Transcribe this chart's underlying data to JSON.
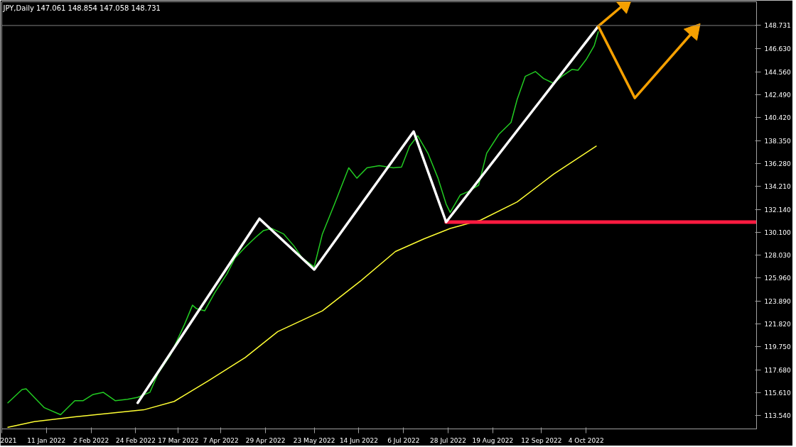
{
  "chart_data": {
    "type": "line",
    "title": "JPY,Daily  147.061 148.854 147.058 148.731",
    "xlim": [
      "2021-12-20",
      "2022-12-27"
    ],
    "ylim": [
      112.35,
      150.87
    ],
    "xticks": [
      {
        "value": "2021-12-20",
        "label": "2021"
      },
      {
        "value": "2022-01-11",
        "label": "11 Jan 2022"
      },
      {
        "value": "2022-02-02",
        "label": "2 Feb 2022"
      },
      {
        "value": "2022-02-24",
        "label": "24 Feb 2022"
      },
      {
        "value": "2022-03-17",
        "label": "17 Mar 2022"
      },
      {
        "value": "2022-04-07",
        "label": "7 Apr 2022"
      },
      {
        "value": "2022-04-29",
        "label": "29 Apr 2022"
      },
      {
        "value": "2022-05-23",
        "label": "23 May 2022"
      },
      {
        "value": "2022-06-14",
        "label": "14 Jun 2022"
      },
      {
        "value": "2022-07-06",
        "label": "6 Jul 2022"
      },
      {
        "value": "2022-07-28",
        "label": "28 Jul 2022"
      },
      {
        "value": "2022-08-19",
        "label": "19 Aug 2022"
      },
      {
        "value": "2022-09-12",
        "label": "12 Sep 2022"
      },
      {
        "value": "2022-10-04",
        "label": "4 Oct 2022"
      }
    ],
    "yticks": [
      {
        "value": 113.54,
        "label": "113.540"
      },
      {
        "value": 115.61,
        "label": "115.610"
      },
      {
        "value": 117.68,
        "label": "117.680"
      },
      {
        "value": 119.75,
        "label": "119.750"
      },
      {
        "value": 121.82,
        "label": "121.820"
      },
      {
        "value": 123.89,
        "label": "123.890"
      },
      {
        "value": 125.96,
        "label": "125.960"
      },
      {
        "value": 128.03,
        "label": "128.030"
      },
      {
        "value": 130.1,
        "label": "130.100"
      },
      {
        "value": 132.14,
        "label": "132.140"
      },
      {
        "value": 134.21,
        "label": "134.210"
      },
      {
        "value": 136.28,
        "label": "136.280"
      },
      {
        "value": 138.35,
        "label": "138.350"
      },
      {
        "value": 140.42,
        "label": "140.420"
      },
      {
        "value": 142.49,
        "label": "142.490"
      },
      {
        "value": 144.56,
        "label": "144.560"
      },
      {
        "value": 146.63,
        "label": "146.630"
      },
      148.731
    ],
    "grid": false,
    "ref_lines": [
      {
        "axis": "y",
        "value": 148.731,
        "color": "#808080"
      }
    ],
    "series": [
      {
        "color": "#ffff33",
        "x": [
          "2021-12-23",
          "2022-01-05",
          "2022-01-25",
          "2022-02-28",
          "2022-03-15",
          "2022-04-01",
          "2022-04-19",
          "2022-05-05",
          "2022-05-27",
          "2022-06-15",
          "2022-07-02",
          "2022-07-16",
          "2022-07-29",
          "2022-08-13",
          "2022-08-31",
          "2022-09-18",
          "2022-10-09"
        ],
        "values": [
          112.5,
          113.0,
          113.44,
          114.07,
          114.83,
          116.71,
          118.79,
          121.12,
          123.0,
          125.71,
          128.35,
          129.48,
          130.43,
          131.18,
          132.82,
          135.33,
          137.85
        ]
      },
      {
        "color": "#22cc22",
        "x": [
          "2021-12-23",
          "2021-12-30",
          "2022-01-01",
          "2022-01-05",
          "2022-01-10",
          "2022-01-18",
          "2022-01-25",
          "2022-01-29",
          "2022-02-03",
          "2022-02-08",
          "2022-02-14",
          "2022-02-20",
          "2022-02-25",
          "2022-03-03",
          "2022-03-07",
          "2022-03-13",
          "2022-03-20",
          "2022-03-24",
          "2022-03-26",
          "2022-03-30",
          "2022-04-04",
          "2022-04-10",
          "2022-04-14",
          "2022-04-19",
          "2022-04-24",
          "2022-04-28",
          "2022-05-02",
          "2022-05-08",
          "2022-05-13",
          "2022-05-17",
          "2022-05-23",
          "2022-05-27",
          "2022-06-02",
          "2022-06-09",
          "2022-06-13",
          "2022-06-18",
          "2022-06-24",
          "2022-07-01",
          "2022-07-05",
          "2022-07-09",
          "2022-07-13",
          "2022-07-18",
          "2022-07-23",
          "2022-07-27",
          "2022-07-29",
          "2022-08-03",
          "2022-08-07",
          "2022-08-12",
          "2022-08-16",
          "2022-08-22",
          "2022-08-28",
          "2022-08-31",
          "2022-09-04",
          "2022-09-09",
          "2022-09-13",
          "2022-09-18",
          "2022-09-22",
          "2022-09-27",
          "2022-09-30",
          "2022-10-04",
          "2022-10-08",
          "2022-10-10"
        ],
        "values": [
          114.7,
          115.9,
          115.96,
          115.2,
          114.26,
          113.63,
          114.89,
          114.89,
          115.46,
          115.65,
          114.89,
          115.02,
          115.2,
          115.65,
          117.34,
          118.98,
          121.75,
          123.51,
          123.19,
          123.0,
          124.64,
          126.34,
          127.78,
          128.73,
          129.61,
          130.24,
          130.43,
          129.92,
          128.85,
          127.78,
          126.97,
          129.92,
          132.63,
          135.9,
          134.96,
          135.9,
          136.09,
          135.9,
          135.96,
          137.85,
          138.79,
          137.22,
          134.96,
          132.63,
          131.87,
          133.45,
          133.76,
          134.33,
          137.22,
          138.92,
          139.99,
          142.06,
          144.14,
          144.58,
          143.95,
          143.51,
          144.14,
          144.77,
          144.7,
          145.65,
          146.91,
          148.17
        ]
      },
      {
        "color": "#ff1a40",
        "x": [
          "2022-07-27",
          "2022-12-27"
        ],
        "values": [
          131.0,
          131.0
        ]
      },
      {
        "color": "#ffffff",
        "x": [
          "2022-02-25",
          "2022-04-26",
          "2022-05-23",
          "2022-07-11",
          "2022-07-27",
          "2022-10-10"
        ],
        "values": [
          114.7,
          131.31,
          126.72,
          139.17,
          131.0,
          148.67
        ]
      },
      {
        "color": "#f5a000",
        "x": [
          "2022-10-10",
          "2022-10-23"
        ],
        "values": [
          148.67,
          150.68
        ]
      },
      {
        "color": "#f5a000",
        "x": [
          "2022-10-10",
          "2022-10-28",
          "2022-11-26"
        ],
        "values": [
          148.67,
          142.19,
          148.23
        ]
      }
    ]
  }
}
